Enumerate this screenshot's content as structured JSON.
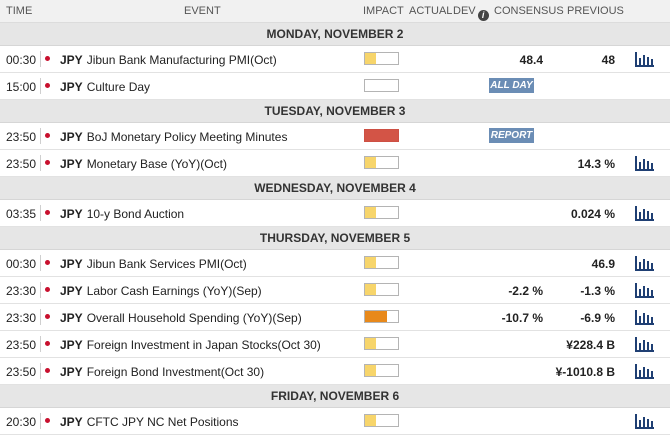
{
  "header": {
    "time": "TIME",
    "event": "EVENT",
    "impact": "IMPACT",
    "actual": "ACTUAL",
    "dev": "DEV",
    "consensus": "CONSENSUS",
    "previous": "PREVIOUS"
  },
  "days": [
    {
      "label": "MONDAY, NOVEMBER 2",
      "events": [
        {
          "time": "00:30",
          "currency": "JPY",
          "name": "Jibun Bank Manufacturing PMI(Oct)",
          "impact": "low",
          "consensus": "48.4",
          "previous": "48",
          "badge": "",
          "chart": true
        },
        {
          "time": "15:00",
          "currency": "JPY",
          "name": "Culture Day",
          "impact": "holiday",
          "consensus": "",
          "previous": "",
          "badge": "ALL DAY",
          "chart": false
        }
      ]
    },
    {
      "label": "TUESDAY, NOVEMBER 3",
      "events": [
        {
          "time": "23:50",
          "currency": "JPY",
          "name": "BoJ Monetary Policy Meeting Minutes",
          "impact": "high",
          "consensus": "",
          "previous": "",
          "badge": "REPORT",
          "chart": false
        },
        {
          "time": "23:50",
          "currency": "JPY",
          "name": "Monetary Base (YoY)(Oct)",
          "impact": "low",
          "consensus": "",
          "previous": "14.3 %",
          "badge": "",
          "chart": true
        }
      ]
    },
    {
      "label": "WEDNESDAY, NOVEMBER 4",
      "events": [
        {
          "time": "03:35",
          "currency": "JPY",
          "name": "10-y Bond Auction",
          "impact": "low",
          "consensus": "",
          "previous": "0.024 %",
          "badge": "",
          "chart": true
        }
      ]
    },
    {
      "label": "THURSDAY, NOVEMBER 5",
      "events": [
        {
          "time": "00:30",
          "currency": "JPY",
          "name": "Jibun Bank Services PMI(Oct)",
          "impact": "low",
          "consensus": "",
          "previous": "46.9",
          "badge": "",
          "chart": true
        },
        {
          "time": "23:30",
          "currency": "JPY",
          "name": "Labor Cash Earnings (YoY)(Sep)",
          "impact": "low",
          "consensus": "-2.2 %",
          "previous": "-1.3 %",
          "badge": "",
          "chart": true
        },
        {
          "time": "23:30",
          "currency": "JPY",
          "name": "Overall Household Spending (YoY)(Sep)",
          "impact": "medium",
          "consensus": "-10.7 %",
          "previous": "-6.9 %",
          "badge": "",
          "chart": true
        },
        {
          "time": "23:50",
          "currency": "JPY",
          "name": "Foreign Investment in Japan Stocks(Oct 30)",
          "impact": "low",
          "consensus": "",
          "previous": "¥228.4 B",
          "badge": "",
          "chart": true
        },
        {
          "time": "23:50",
          "currency": "JPY",
          "name": "Foreign Bond Investment(Oct 30)",
          "impact": "low",
          "consensus": "",
          "previous": "¥-1010.8 B",
          "badge": "",
          "chart": true
        }
      ]
    },
    {
      "label": "FRIDAY, NOVEMBER 6",
      "events": [
        {
          "time": "20:30",
          "currency": "JPY",
          "name": "CFTC JPY NC Net Positions",
          "impact": "low",
          "consensus": "",
          "previous": "",
          "badge": "",
          "chart": true
        }
      ]
    }
  ],
  "icons": {
    "flag": "japan-flag-icon",
    "info": "info-icon",
    "chart": "bar-chart-icon"
  },
  "colors": {
    "impact_low": "#f7d56b",
    "impact_medium": "#e8891b",
    "impact_high": "#d35446",
    "badge": "#6b8db5",
    "chart_icon": "#1f3f73"
  }
}
